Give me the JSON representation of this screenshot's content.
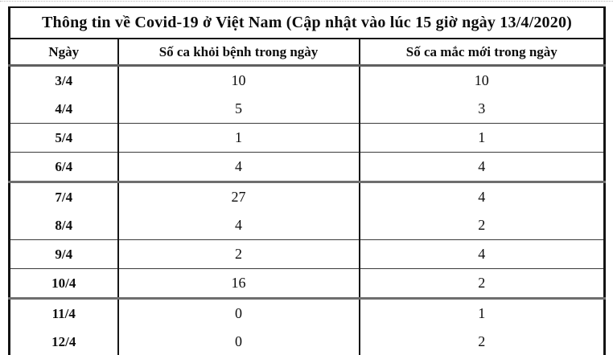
{
  "title": "Thông tin về Covid-19 ở Việt Nam (Cập nhật vào lúc 15 giờ ngày 13/4/2020)",
  "table": {
    "headers": [
      "Ngày",
      "Số ca khỏi bệnh trong ngày",
      "Số ca mắc mới trong ngày"
    ],
    "rows": [
      {
        "date": "3/4",
        "recovered": "10",
        "new_cases": "10"
      },
      {
        "date": "4/4",
        "recovered": "5",
        "new_cases": "3"
      },
      {
        "date": "5/4",
        "recovered": "1",
        "new_cases": "1"
      },
      {
        "date": "6/4",
        "recovered": "4",
        "new_cases": "4"
      },
      {
        "date": "7/4",
        "recovered": "27",
        "new_cases": "4"
      },
      {
        "date": "8/4",
        "recovered": "4",
        "new_cases": "2"
      },
      {
        "date": "9/4",
        "recovered": "2",
        "new_cases": "4"
      },
      {
        "date": "10/4",
        "recovered": "16",
        "new_cases": "2"
      },
      {
        "date": "11/4",
        "recovered": "0",
        "new_cases": "1"
      },
      {
        "date": "12/4",
        "recovered": "0",
        "new_cases": "2"
      }
    ]
  },
  "colors": {
    "text": "#0d0d0d",
    "table_border": "#141414",
    "thick_divider": "#6e6e6e"
  }
}
